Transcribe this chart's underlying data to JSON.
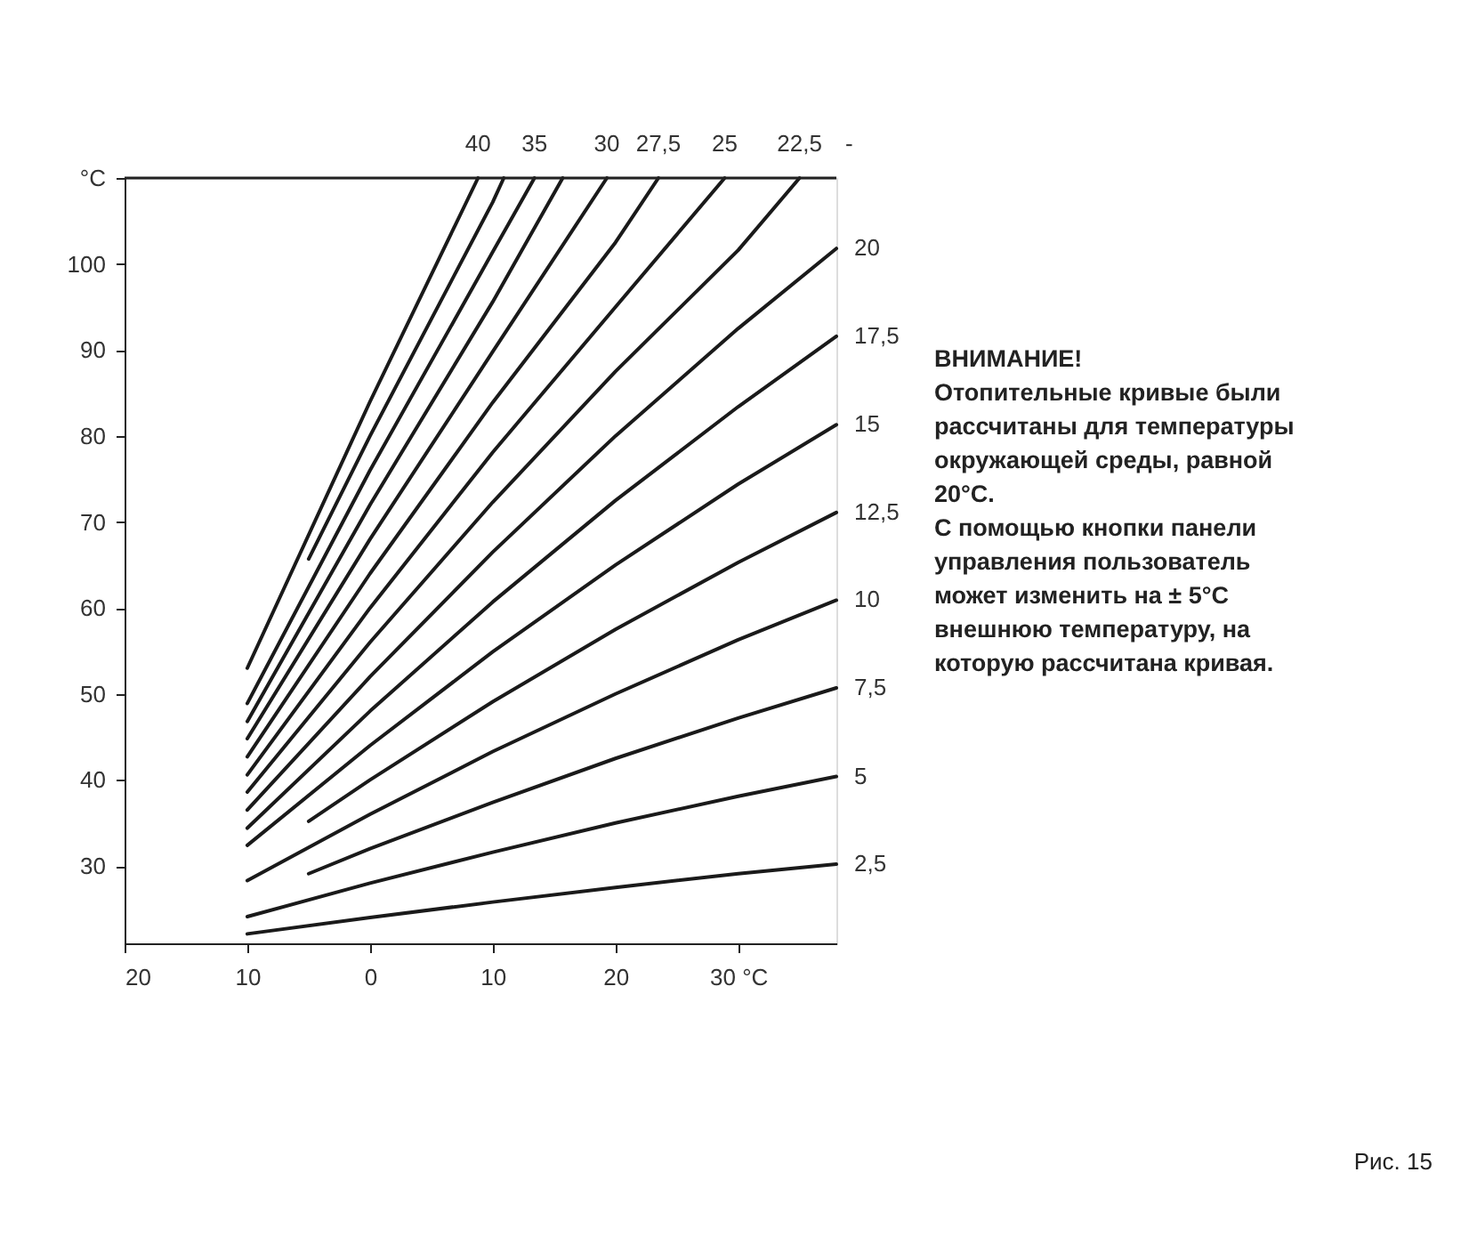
{
  "chart_data": {
    "type": "line",
    "xlim": [
      20,
      -38
    ],
    "ylim": [
      21,
      110
    ],
    "xticks": [
      20,
      10,
      0,
      {
        "value": -10,
        "label": "10"
      },
      {
        "value": -20,
        "label": "20"
      },
      {
        "value": -30,
        "label": "30 °C"
      }
    ],
    "yticks": [
      30,
      40,
      50,
      60,
      70,
      80,
      90,
      100,
      {
        "value": 110,
        "label": "°C"
      }
    ],
    "grid": false,
    "legend": false,
    "marker": "none",
    "line_style": "solid",
    "series": [
      {
        "name": "2,5",
        "color": "#1a1a1a",
        "x": [
          10,
          0,
          -10,
          -20,
          -30,
          -38
        ],
        "values": [
          22.1,
          24.0,
          25.8,
          27.5,
          29.1,
          30.2
        ]
      },
      {
        "name": "5",
        "color": "#1a1a1a",
        "x": [
          10,
          0,
          -10,
          -20,
          -30,
          -38
        ],
        "values": [
          24.1,
          28.0,
          31.6,
          35.0,
          38.1,
          40.4
        ]
      },
      {
        "name": "7,5",
        "color": "#1a1a1a",
        "x": [
          5,
          0,
          -10,
          -20,
          -30,
          -38
        ],
        "values": [
          29.1,
          32.0,
          37.4,
          42.5,
          47.2,
          50.7
        ]
      },
      {
        "name": "10",
        "color": "#1a1a1a",
        "x": [
          10,
          0,
          -10,
          -20,
          -30,
          -38
        ],
        "values": [
          28.3,
          36.0,
          43.3,
          50.0,
          56.3,
          60.9
        ]
      },
      {
        "name": "12,5",
        "color": "#1a1a1a",
        "x": [
          5,
          0,
          -10,
          -20,
          -30,
          -38
        ],
        "values": [
          35.2,
          40.0,
          49.1,
          57.5,
          65.3,
          71.1
        ]
      },
      {
        "name": "15",
        "color": "#1a1a1a",
        "x": [
          10,
          0,
          -10,
          -20,
          -30,
          -38
        ],
        "values": [
          32.4,
          44.0,
          54.9,
          65.0,
          74.4,
          81.3
        ]
      },
      {
        "name": "17,5",
        "color": "#1a1a1a",
        "x": [
          10,
          0,
          -10,
          -20,
          -30,
          -38
        ],
        "values": [
          34.4,
          48.0,
          60.7,
          72.5,
          83.4,
          91.6
        ]
      },
      {
        "name": "20",
        "color": "#1a1a1a",
        "x": [
          10,
          0,
          -10,
          -20,
          -30,
          -38
        ],
        "values": [
          36.5,
          52.0,
          66.5,
          80.0,
          92.5,
          101.8
        ]
      },
      {
        "name": "22,5",
        "color": "#1a1a1a",
        "x": [
          10,
          0,
          -10,
          -20,
          -30,
          -35
        ],
        "values": [
          38.6,
          56.0,
          72.3,
          87.5,
          101.6,
          110
        ]
      },
      {
        "name": "25",
        "color": "#1a1a1a",
        "x": [
          10,
          0,
          -10,
          -20,
          -28.9
        ],
        "values": [
          40.6,
          60.0,
          78.1,
          95.0,
          110
        ]
      },
      {
        "name": "27,5",
        "color": "#1a1a1a",
        "x": [
          10,
          0,
          -10,
          -20,
          -23.5
        ],
        "values": [
          42.7,
          64.0,
          83.9,
          102.5,
          110
        ]
      },
      {
        "name": "30",
        "color": "#1a1a1a",
        "x": [
          10,
          0,
          -10,
          -19.3
        ],
        "values": [
          44.8,
          68.0,
          89.8,
          110
        ]
      },
      {
        "color": "#1a1a1a",
        "x": [
          10,
          0,
          -10,
          -15.7
        ],
        "values": [
          46.8,
          72.0,
          95.6,
          110
        ]
      },
      {
        "name": "35",
        "color": "#1a1a1a",
        "x": [
          10,
          0,
          -10,
          -13.4
        ],
        "values": [
          48.9,
          76.0,
          101.4,
          110
        ]
      },
      {
        "color": "#1a1a1a",
        "x": [
          5,
          0,
          -10,
          -10.9
        ],
        "values": [
          65.7,
          80.0,
          107.2,
          110
        ]
      },
      {
        "name": "40",
        "color": "#1a1a1a",
        "x": [
          10,
          0,
          -8.8
        ],
        "values": [
          53.0,
          84.0,
          110
        ]
      }
    ],
    "annotations": [
      "-",
      "ВНИМАНИЕ!",
      "Отопительные кривые были рассчитаны для температуры окружающей среды, равной 20°C.",
      "С помощью кнопки панели управления пользователь может изменить на ± 5°C внешнюю температуру, на которую рассчитана кривая.",
      "Рис. 15"
    ]
  }
}
